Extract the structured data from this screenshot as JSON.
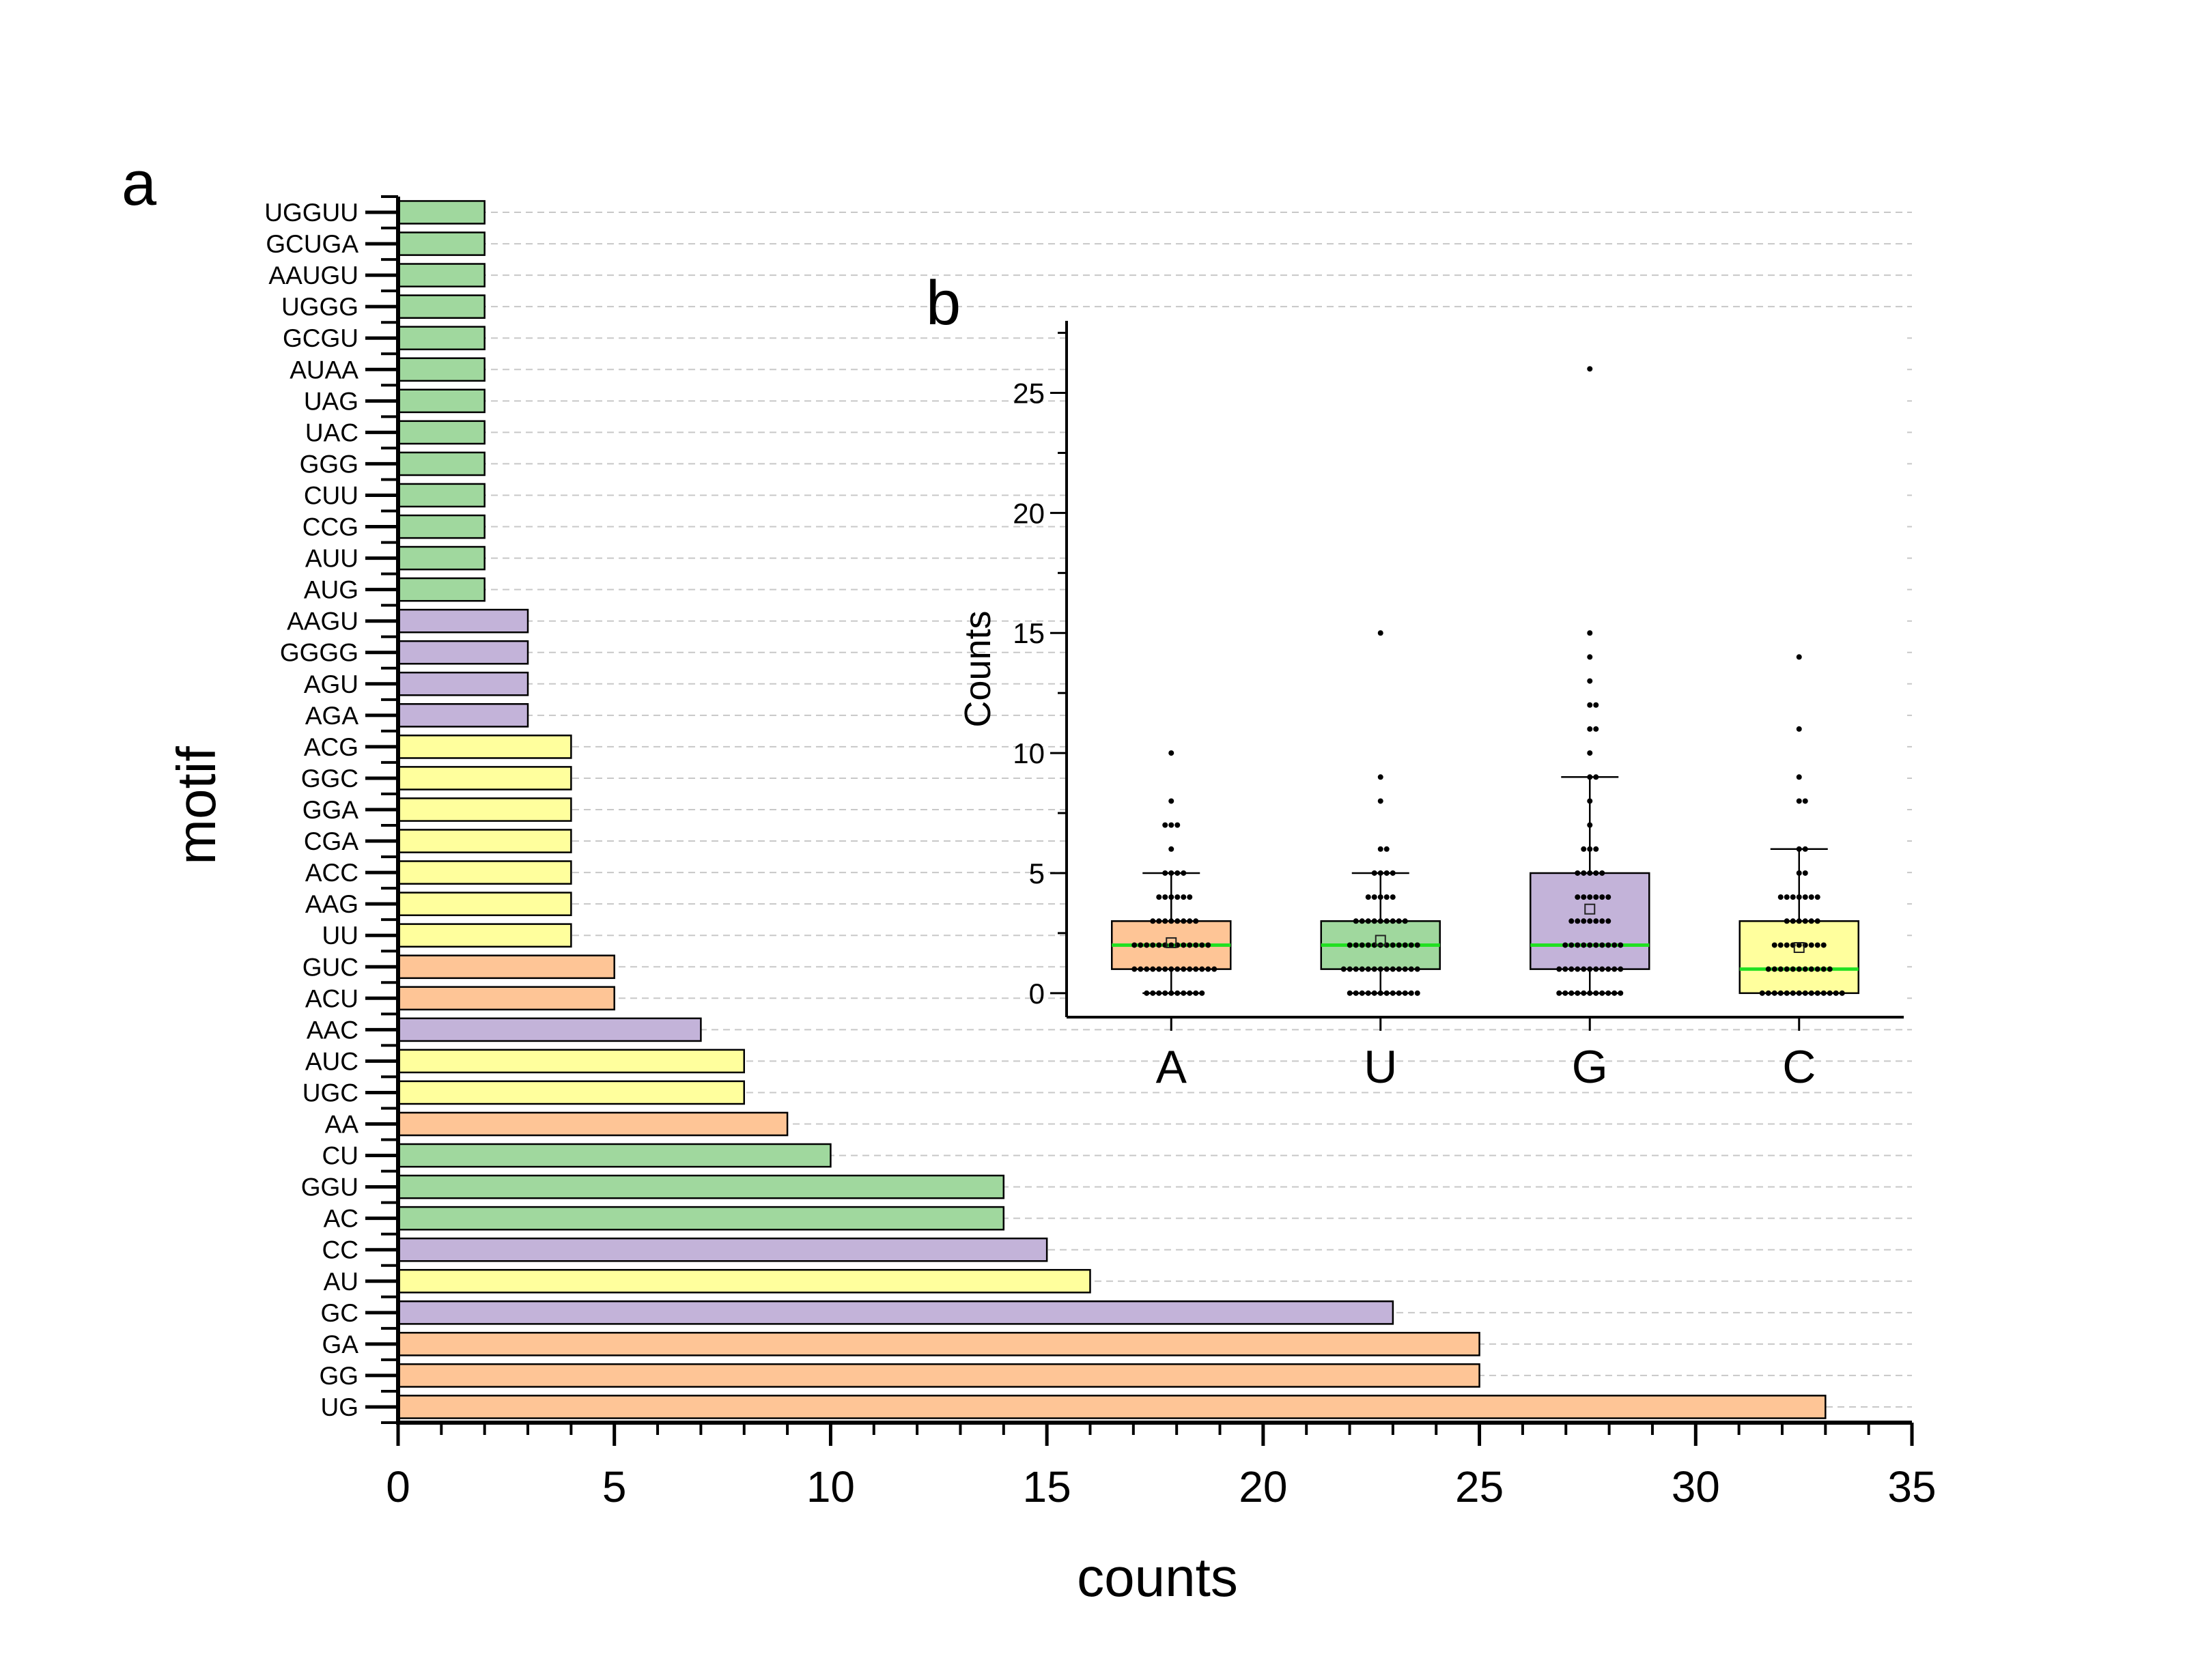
{
  "colors": {
    "orange": "#fec596",
    "green": "#a0d89e",
    "purple": "#c3b3d9",
    "yellow": "#ffff9d",
    "median": "#22e022",
    "grid": "#c8c8c8"
  },
  "chart_data": [
    {
      "type": "bar",
      "orientation": "horizontal",
      "panel_label": "a",
      "xlabel": "counts",
      "ylabel": "motif",
      "xlim": [
        0,
        35
      ],
      "x_ticks": [
        "0",
        "5",
        "10",
        "15",
        "20",
        "25",
        "30",
        "35"
      ],
      "grid": "horizontal dashed",
      "categories": [
        "UG",
        "GG",
        "GA",
        "GC",
        "AU",
        "CC",
        "AC",
        "GGU",
        "CU",
        "AA",
        "UGC",
        "AUC",
        "AAC",
        "ACU",
        "GUC",
        "UU",
        "AAG",
        "ACC",
        "CGA",
        "GGA",
        "GGC",
        "ACG",
        "AGA",
        "AGU",
        "GGGG",
        "AAGU",
        "AUG",
        "AUU",
        "CCG",
        "CUU",
        "GGG",
        "UAC",
        "UAG",
        "AUAA",
        "GCGU",
        "UGGG",
        "AAUGU",
        "GCUGA",
        "UGGUU"
      ],
      "values": [
        33,
        25,
        25,
        23,
        16,
        15,
        14,
        14,
        10,
        9,
        8,
        8,
        7,
        5,
        5,
        4,
        4,
        4,
        4,
        4,
        4,
        4,
        3,
        3,
        3,
        3,
        2,
        2,
        2,
        2,
        2,
        2,
        2,
        2,
        2,
        2,
        2,
        2,
        2
      ],
      "bar_colors": [
        "orange",
        "orange",
        "orange",
        "purple",
        "yellow",
        "purple",
        "green",
        "green",
        "green",
        "orange",
        "yellow",
        "yellow",
        "purple",
        "orange",
        "orange",
        "yellow",
        "yellow",
        "yellow",
        "yellow",
        "yellow",
        "yellow",
        "yellow",
        "purple",
        "purple",
        "purple",
        "purple",
        "green",
        "green",
        "green",
        "green",
        "green",
        "green",
        "green",
        "green",
        "green",
        "green",
        "green",
        "green",
        "green"
      ]
    },
    {
      "type": "box",
      "panel_label": "b",
      "ylabel": "Counts",
      "ylim": [
        -1,
        28
      ],
      "y_ticks": [
        "0",
        "5",
        "10",
        "15",
        "20",
        "25"
      ],
      "categories": [
        "A",
        "U",
        "G",
        "C"
      ],
      "colors": [
        "orange",
        "green",
        "purple",
        "yellow"
      ],
      "boxes": [
        {
          "q1": 1,
          "median": 2,
          "q3": 3,
          "whisker_low": 0,
          "whisker_high": 5,
          "mean": 2.1,
          "points": [
            0,
            0,
            0,
            0,
            0,
            0,
            0,
            0,
            0,
            0,
            1,
            1,
            1,
            1,
            1,
            1,
            1,
            1,
            1,
            1,
            1,
            1,
            1,
            1,
            2,
            2,
            2,
            2,
            2,
            2,
            2,
            2,
            2,
            2,
            2,
            2,
            2,
            3,
            3,
            3,
            3,
            3,
            3,
            3,
            3,
            4,
            4,
            4,
            4,
            4,
            4,
            5,
            5,
            5,
            5,
            6,
            7,
            7,
            7,
            8,
            10
          ]
        },
        {
          "q1": 1,
          "median": 2,
          "q3": 3,
          "whisker_low": 0,
          "whisker_high": 5,
          "mean": 2.2,
          "points": [
            0,
            0,
            0,
            0,
            0,
            0,
            0,
            0,
            0,
            0,
            0,
            0,
            1,
            1,
            1,
            1,
            1,
            1,
            1,
            1,
            1,
            1,
            1,
            1,
            1,
            2,
            2,
            2,
            2,
            2,
            2,
            2,
            2,
            2,
            2,
            2,
            2,
            3,
            3,
            3,
            3,
            3,
            3,
            3,
            3,
            3,
            4,
            4,
            4,
            4,
            4,
            5,
            5,
            5,
            5,
            6,
            6,
            8,
            9,
            15
          ]
        },
        {
          "q1": 1,
          "median": 2,
          "q3": 5,
          "whisker_low": 0,
          "whisker_high": 9,
          "mean": 3.5,
          "points": [
            0,
            0,
            0,
            0,
            0,
            0,
            0,
            0,
            0,
            0,
            0,
            1,
            1,
            1,
            1,
            1,
            1,
            1,
            1,
            1,
            1,
            1,
            2,
            2,
            2,
            2,
            2,
            2,
            2,
            2,
            2,
            2,
            3,
            3,
            3,
            3,
            3,
            3,
            3,
            4,
            4,
            4,
            4,
            4,
            4,
            5,
            5,
            5,
            5,
            5,
            6,
            6,
            6,
            7,
            8,
            9,
            9,
            10,
            11,
            11,
            12,
            12,
            13,
            14,
            15,
            26
          ]
        },
        {
          "q1": 0,
          "median": 1,
          "q3": 3,
          "whisker_low": 0,
          "whisker_high": 6,
          "mean": 1.9,
          "points": [
            0,
            0,
            0,
            0,
            0,
            0,
            0,
            0,
            0,
            0,
            0,
            0,
            0,
            0,
            1,
            1,
            1,
            1,
            1,
            1,
            1,
            1,
            1,
            1,
            1,
            2,
            2,
            2,
            2,
            2,
            2,
            2,
            2,
            2,
            3,
            3,
            3,
            3,
            3,
            3,
            4,
            4,
            4,
            4,
            4,
            4,
            4,
            5,
            5,
            6,
            6,
            8,
            8,
            9,
            11,
            14
          ]
        }
      ]
    }
  ]
}
